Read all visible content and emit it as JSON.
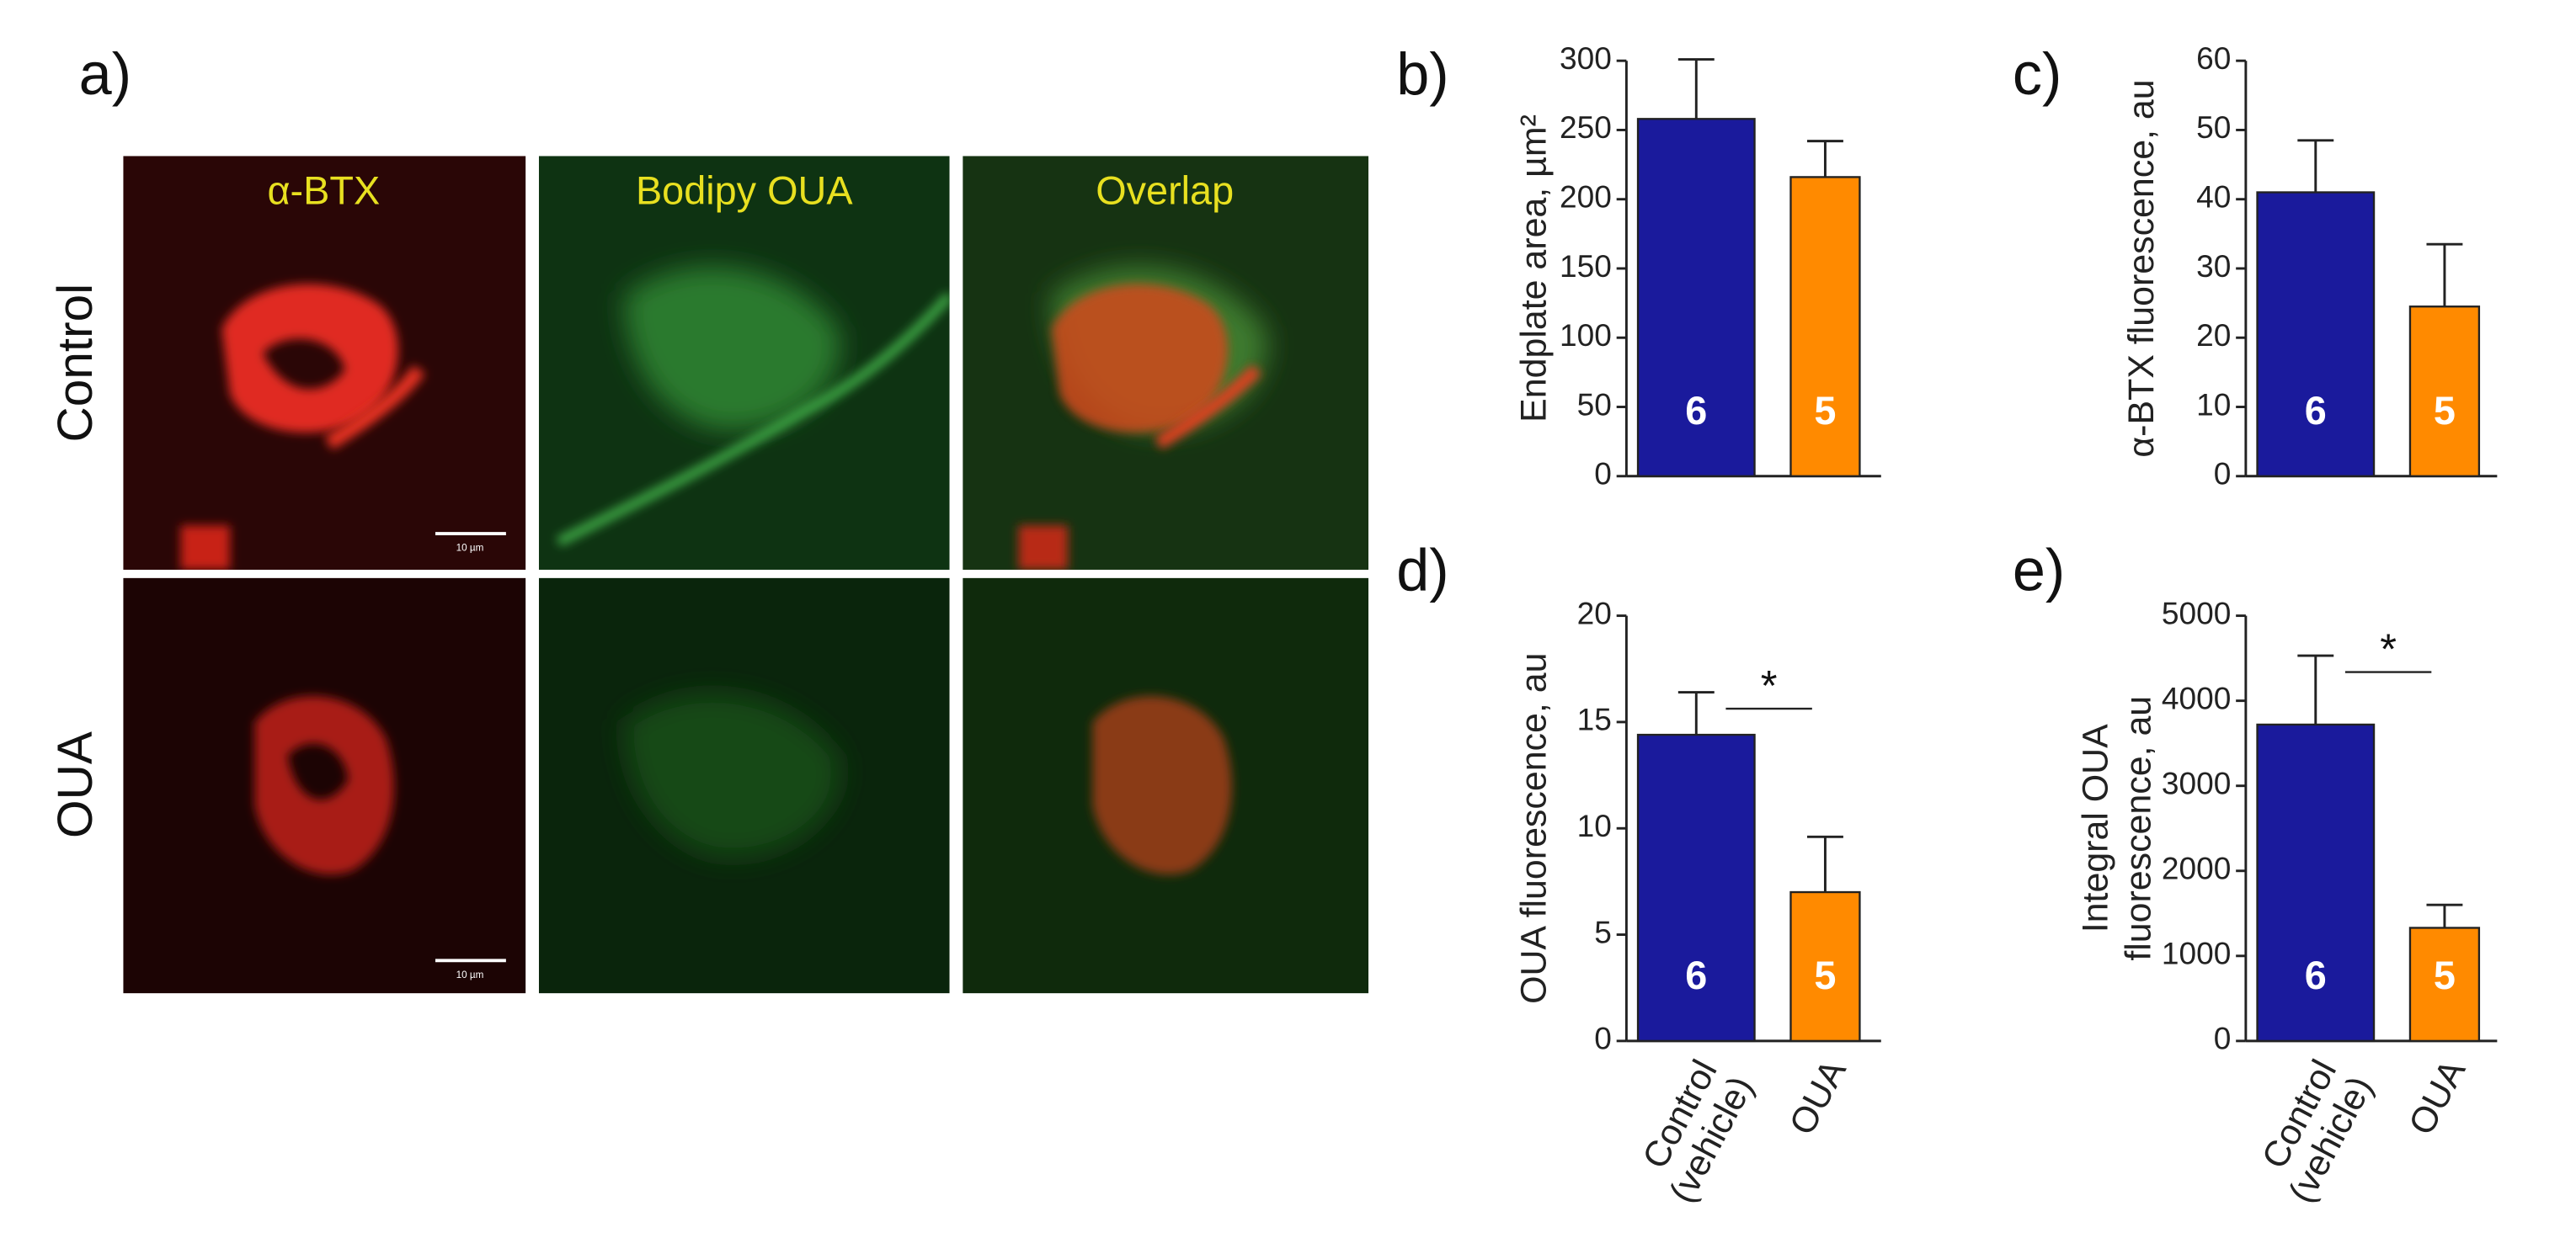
{
  "panel_a": {
    "label": "a)",
    "columns": [
      "α-BTX",
      "Bodipy OUA",
      "Overlap"
    ],
    "rows": [
      "Control",
      "OUA"
    ],
    "scale_bar": "10 µm"
  },
  "chart_data": [
    {
      "type": "bar",
      "label": "b)",
      "ylabel": [
        "Endplate area, µm²"
      ],
      "ylim": [
        0,
        300
      ],
      "yticks": [
        0,
        50,
        100,
        150,
        200,
        250,
        300
      ],
      "values": [
        258,
        216
      ],
      "errors": [
        43,
        26
      ],
      "colors": [
        "#1a1a9c",
        "#ff8a00"
      ],
      "bar_labels": [
        "6",
        "5"
      ]
    },
    {
      "type": "bar",
      "label": "c)",
      "ylabel": [
        "α-BTX fluorescence, au"
      ],
      "ylim": [
        0,
        60
      ],
      "yticks": [
        0,
        10,
        20,
        30,
        40,
        50,
        60
      ],
      "values": [
        41,
        24.5
      ],
      "errors": [
        7.5,
        9
      ],
      "colors": [
        "#1a1a9c",
        "#ff8a00"
      ],
      "bar_labels": [
        "6",
        "5"
      ]
    },
    {
      "type": "bar",
      "label": "d)",
      "ylabel": [
        "OUA fluorescence, au"
      ],
      "ylim": [
        0,
        20
      ],
      "yticks": [
        0,
        5,
        10,
        15,
        20
      ],
      "values": [
        14.4,
        7.0
      ],
      "errors": [
        2.0,
        2.6
      ],
      "colors": [
        "#1a1a9c",
        "#ff8a00"
      ],
      "bar_labels": [
        "6",
        "5"
      ],
      "categories": [
        [
          "Control",
          "(vehicle)"
        ],
        [
          "OUA"
        ]
      ],
      "significance": "*"
    },
    {
      "type": "bar",
      "label": "e)",
      "ylabel": [
        "Integral OUA",
        "fluorescence, au"
      ],
      "ylim": [
        0,
        5000
      ],
      "yticks": [
        0,
        1000,
        2000,
        3000,
        4000,
        5000
      ],
      "values": [
        3720,
        1330
      ],
      "errors": [
        810,
        270
      ],
      "colors": [
        "#1a1a9c",
        "#ff8a00"
      ],
      "bar_labels": [
        "6",
        "5"
      ],
      "categories": [
        [
          "Control",
          "(vehicle)"
        ],
        [
          "OUA"
        ]
      ],
      "significance": "*"
    }
  ]
}
